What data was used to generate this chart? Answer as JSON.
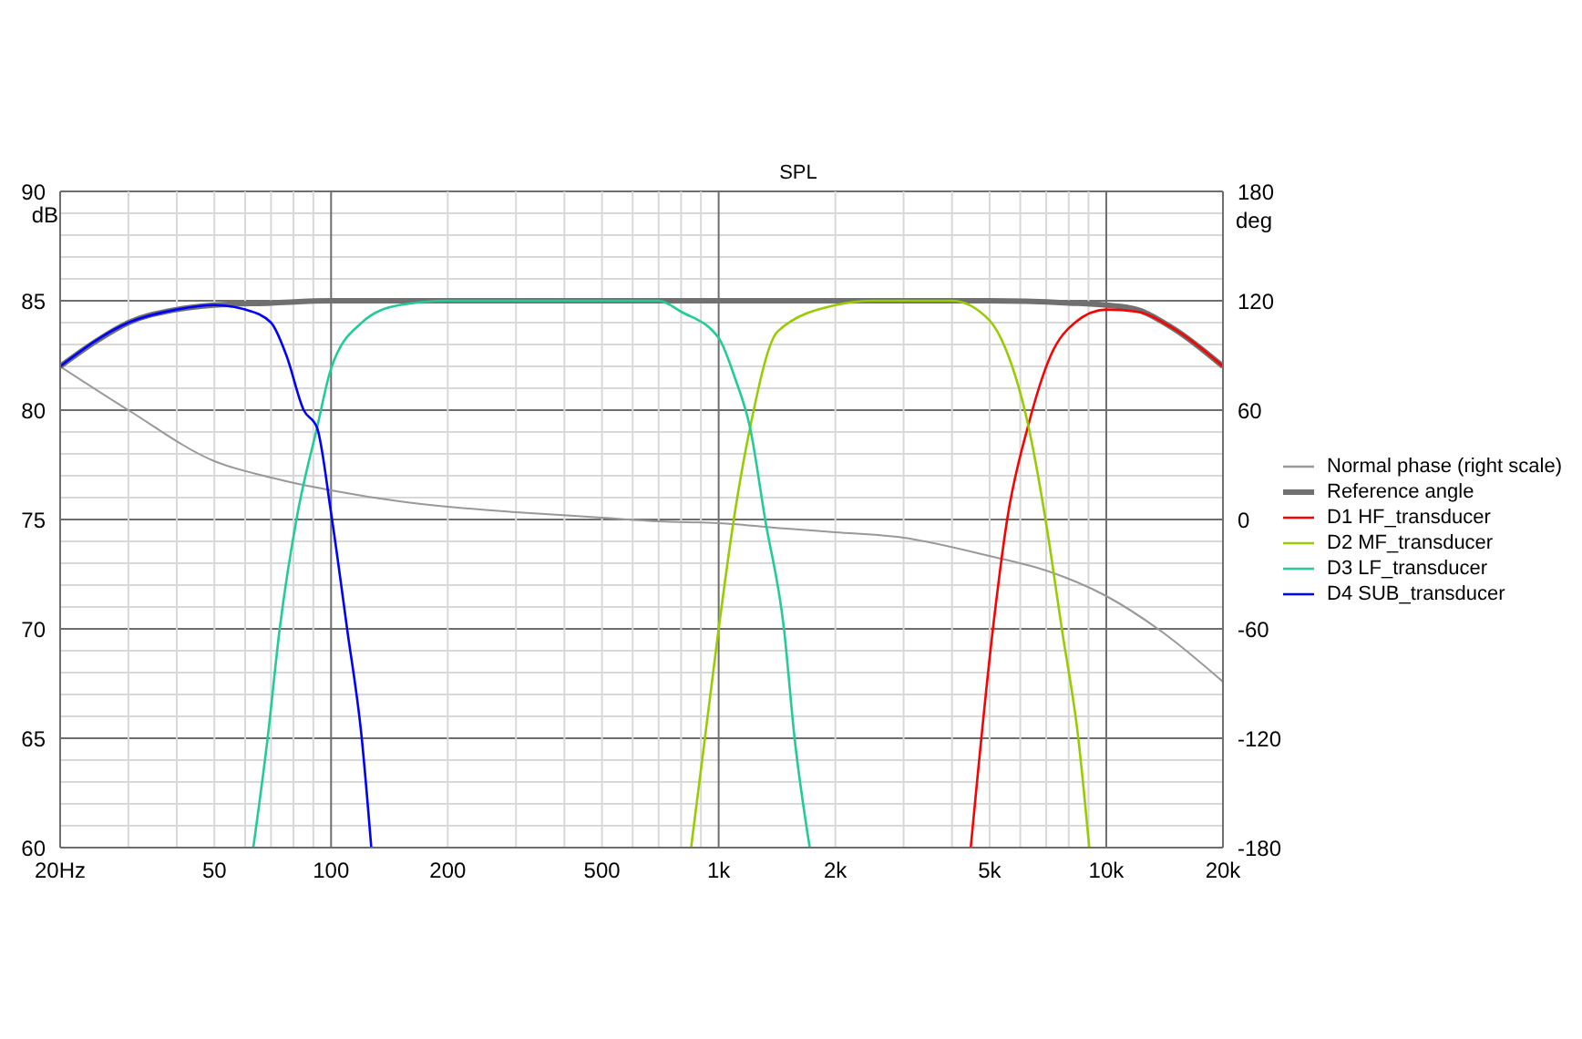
{
  "chart_data": {
    "type": "line",
    "title": "SPL",
    "ylabel": "dB",
    "y2label": "deg",
    "log": "x",
    "grid": true,
    "legend": "right",
    "xlim": [
      20,
      20000
    ],
    "xticks": [
      {
        "value": 20,
        "label": "20Hz"
      },
      {
        "value": 30,
        "label": null
      },
      {
        "value": 40,
        "label": null
      },
      50,
      {
        "value": 60,
        "label": null
      },
      {
        "value": 70,
        "label": null
      },
      {
        "value": 80,
        "label": null
      },
      {
        "value": 90,
        "label": null
      },
      100,
      200,
      {
        "value": 300,
        "label": null
      },
      {
        "value": 400,
        "label": null
      },
      500,
      {
        "value": 600,
        "label": null
      },
      {
        "value": 700,
        "label": null
      },
      {
        "value": 800,
        "label": null
      },
      {
        "value": 900,
        "label": null
      },
      {
        "value": 1000,
        "label": "1k"
      },
      {
        "value": 2000,
        "label": "2k"
      },
      {
        "value": 3000,
        "label": null
      },
      {
        "value": 4000,
        "label": null
      },
      {
        "value": 5000,
        "label": "5k"
      },
      {
        "value": 6000,
        "label": null
      },
      {
        "value": 7000,
        "label": null
      },
      {
        "value": 8000,
        "label": null
      },
      {
        "value": 9000,
        "label": null
      },
      {
        "value": 10000,
        "label": "10k"
      },
      {
        "value": 20000,
        "label": "20k"
      }
    ],
    "ylim": [
      60,
      90
    ],
    "yticks": [
      60,
      {
        "value": 61,
        "label": null
      },
      {
        "value": 62,
        "label": null
      },
      {
        "value": 63,
        "label": null
      },
      {
        "value": 64,
        "label": null
      },
      65,
      {
        "value": 66,
        "label": null
      },
      {
        "value": 67,
        "label": null
      },
      {
        "value": 68,
        "label": null
      },
      {
        "value": 69,
        "label": null
      },
      70,
      {
        "value": 71,
        "label": null
      },
      {
        "value": 72,
        "label": null
      },
      {
        "value": 73,
        "label": null
      },
      {
        "value": 74,
        "label": null
      },
      75,
      {
        "value": 76,
        "label": null
      },
      {
        "value": 77,
        "label": null
      },
      {
        "value": 78,
        "label": null
      },
      {
        "value": 79,
        "label": null
      },
      80,
      {
        "value": 81,
        "label": null
      },
      {
        "value": 82,
        "label": null
      },
      {
        "value": 83,
        "label": null
      },
      {
        "value": 84,
        "label": null
      },
      85,
      {
        "value": 86,
        "label": null
      },
      {
        "value": 87,
        "label": null
      },
      {
        "value": 88,
        "label": null
      },
      {
        "value": 89,
        "label": null
      },
      90
    ],
    "y2lim": [
      -180,
      180
    ],
    "y2ticks": [
      -180,
      -120,
      -60,
      0,
      60,
      120,
      180
    ],
    "series": [
      {
        "name": "Normal phase (right scale)",
        "color": "#999999",
        "axis": "y2",
        "x": [
          20,
          30,
          50,
          70,
          100,
          150,
          200,
          300,
          500,
          700,
          1000,
          1500,
          2000,
          3000,
          5000,
          7000,
          10000,
          14000,
          20000
        ],
        "values": [
          84,
          60,
          32,
          23,
          16,
          10,
          7,
          4,
          1,
          -1,
          -2,
          -5,
          -7,
          -10,
          -20,
          -28,
          -42,
          -62,
          -89
        ]
      },
      {
        "name": "Reference angle",
        "color": "#707070",
        "x": [
          20,
          25,
          30,
          40,
          50,
          70,
          100,
          1000,
          5000,
          8000,
          10000,
          12000,
          15000,
          20000
        ],
        "values": [
          82,
          83.2,
          84,
          84.6,
          84.8,
          84.9,
          85,
          85,
          85,
          84.9,
          84.8,
          84.6,
          83.7,
          82
        ]
      },
      {
        "name": "D1 HF_transducer",
        "color": "#ff0000",
        "x": [
          4470,
          5100,
          5550,
          6290,
          7190,
          8300,
          10000,
          12000,
          15000,
          20000
        ],
        "values": [
          60,
          70,
          75,
          79.3,
          82.5,
          84,
          84.6,
          84.5,
          83.7,
          82
        ]
      },
      {
        "name": "D2 MF_transducer",
        "color": "#99cc00",
        "x": [
          849,
          1000,
          1094,
          1205,
          1420,
          2000,
          2500,
          4000,
          5000,
          5500,
          6290,
          6970,
          7680,
          8470,
          9040
        ],
        "values": [
          60,
          70,
          75,
          79.2,
          83.6,
          84.8,
          85,
          85,
          84.1,
          82.8,
          79.3,
          75,
          70,
          65,
          60
        ]
      },
      {
        "name": "D3 LF_transducer",
        "color": "#22cc99",
        "x": [
          63,
          68.6,
          73.7,
          82,
          92,
          100,
          120,
          150,
          200,
          700,
          800,
          1000,
          1100,
          1205,
          1318,
          1474,
          1570,
          1718
        ],
        "values": [
          60,
          65,
          70,
          75.3,
          79.2,
          81.9,
          84,
          84.8,
          85,
          85,
          84.5,
          83.3,
          81.5,
          79.2,
          75,
          70,
          65,
          60
        ]
      },
      {
        "name": "D4 SUB_transducer",
        "color": "#0000ff",
        "x": [
          20,
          30,
          40,
          50,
          60,
          70,
          76.7,
          85,
          92,
          100,
          110,
          120,
          127
        ],
        "values": [
          82,
          84,
          84.6,
          84.8,
          84.6,
          84,
          82.5,
          80,
          79.2,
          75.3,
          70,
          65,
          60
        ]
      }
    ]
  }
}
